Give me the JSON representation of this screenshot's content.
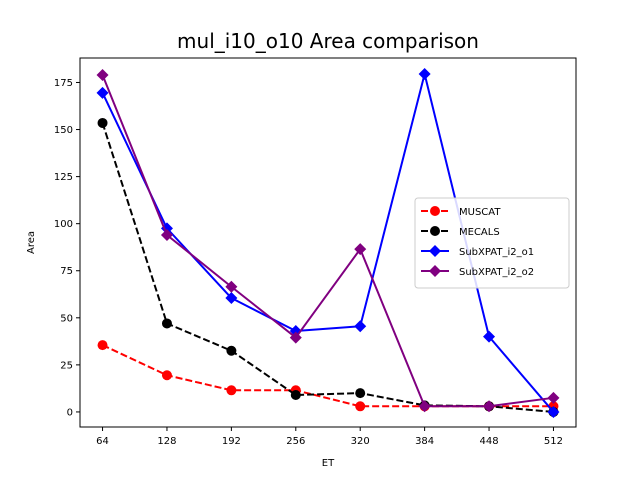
{
  "chart_data": {
    "type": "line",
    "title": "mul_i10_o10 Area comparison",
    "xlabel": "ET",
    "ylabel": "Area",
    "x": [
      64,
      128,
      192,
      256,
      320,
      384,
      448,
      512
    ],
    "xticks": [
      "64",
      "128",
      "192",
      "256",
      "320",
      "384",
      "448",
      "512"
    ],
    "ylim": [
      -8,
      188
    ],
    "yticks": [
      "0",
      "25",
      "50",
      "75",
      "100",
      "125",
      "150",
      "175"
    ],
    "ytick_values": [
      0,
      25,
      50,
      75,
      100,
      125,
      150,
      175
    ],
    "grid": false,
    "legend_position": "center-right",
    "series": [
      {
        "name": "MUSCAT",
        "color": "#ff0000",
        "linestyle": "dashed",
        "marker": "circle",
        "values": [
          35.5,
          19.5,
          11.5,
          11.5,
          3,
          3,
          3,
          3
        ]
      },
      {
        "name": "MECALS",
        "color": "#000000",
        "linestyle": "dashed",
        "marker": "circle",
        "values": [
          153.5,
          47,
          32.5,
          9,
          10,
          3.5,
          3,
          0
        ]
      },
      {
        "name": "SubXPAT_i2_o1",
        "color": "#0000ff",
        "linestyle": "solid",
        "marker": "diamond",
        "values": [
          169.5,
          97.5,
          60.5,
          43,
          45.5,
          179.5,
          40,
          0
        ]
      },
      {
        "name": "SubXPAT_i2_o2",
        "color": "#800080",
        "linestyle": "solid",
        "marker": "diamond",
        "values": [
          179,
          94,
          66.5,
          39.5,
          86.5,
          3,
          3,
          7.5
        ]
      }
    ]
  }
}
